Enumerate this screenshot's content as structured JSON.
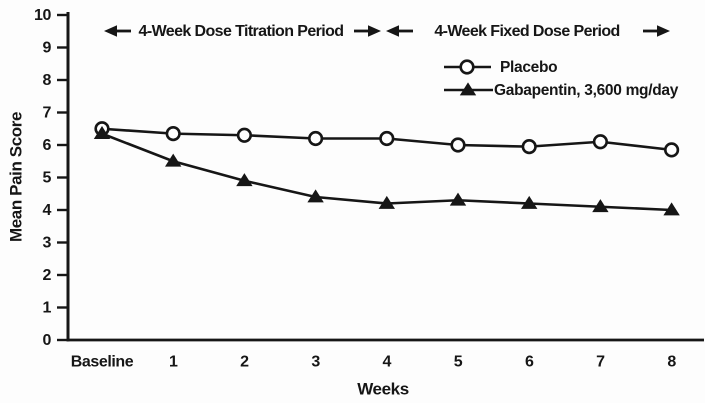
{
  "colors": {
    "ink": "#161616",
    "marker_fill_open": "#ffffff",
    "background": "#fdfdfd"
  },
  "chart_data": {
    "type": "line",
    "title": "",
    "xlabel": "Weeks",
    "ylabel": "Mean Pain Score",
    "categories": [
      "Baseline",
      "1",
      "2",
      "3",
      "4",
      "5",
      "6",
      "7",
      "8"
    ],
    "yticks": [
      "0",
      "1",
      "2",
      "3",
      "4",
      "5",
      "6",
      "7",
      "8",
      "9",
      "10"
    ],
    "ylim": [
      0,
      10
    ],
    "grid": false,
    "legend_position": "top-right-inside",
    "series": [
      {
        "name": "Placebo",
        "marker": "open-circle",
        "values": [
          6.5,
          6.35,
          6.3,
          6.2,
          6.2,
          6.0,
          5.95,
          6.1,
          5.85
        ]
      },
      {
        "name": "Gabapentin, 3,600 mg/day",
        "marker": "filled-triangle",
        "values": [
          6.35,
          5.5,
          4.9,
          4.4,
          4.2,
          4.3,
          4.2,
          4.1,
          4.0
        ]
      }
    ],
    "annotations": [
      {
        "label": "4-Week Dose Titration Period",
        "arrows": "outward-left-and-right"
      },
      {
        "label": "4-Week Fixed Dose Period",
        "arrows": "outward-left-and-right"
      }
    ]
  }
}
